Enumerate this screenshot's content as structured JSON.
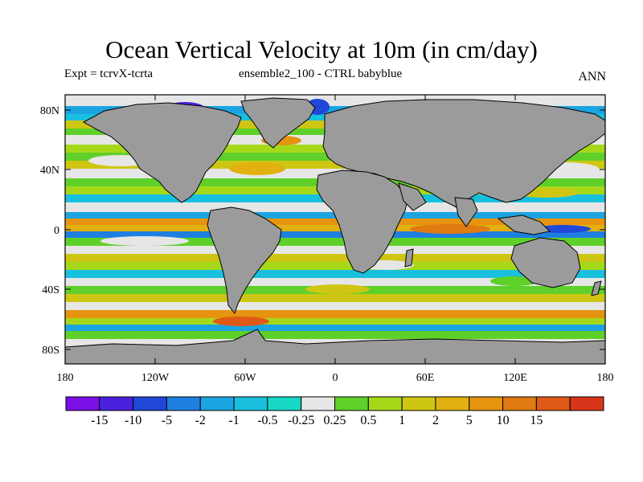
{
  "title": "Ocean Vertical Velocity at 10m (in cm/day)",
  "left_subtitle": "Expt = tcrvX-tcrta",
  "center_subtitle": "ensemble2_100 - CTRL babyblue",
  "right_subtitle": "ANN",
  "y_ticks": [
    "80N",
    "40N",
    "0",
    "40S",
    "80S"
  ],
  "x_ticks": [
    "180",
    "120W",
    "60W",
    "0",
    "60E",
    "120E",
    "180"
  ],
  "colorbar": {
    "colors": [
      "#7b10e6",
      "#4a22dd",
      "#1f48d8",
      "#1f7fe0",
      "#1ba4e0",
      "#19c0de",
      "#16d8c4",
      "#e6e6e6",
      "#5fd02a",
      "#a6d81a",
      "#cfc614",
      "#e2b010",
      "#e69410",
      "#e07a12",
      "#df5a16",
      "#d8361a"
    ],
    "labels": [
      "-15",
      "-10",
      "-5",
      "-2",
      "-1",
      "-0.5",
      "-0.25",
      "0.25",
      "0.5",
      "1",
      "2",
      "5",
      "10",
      "15"
    ]
  },
  "land_color": "#9b9b9b",
  "missing_color": "#e6e6e6"
}
